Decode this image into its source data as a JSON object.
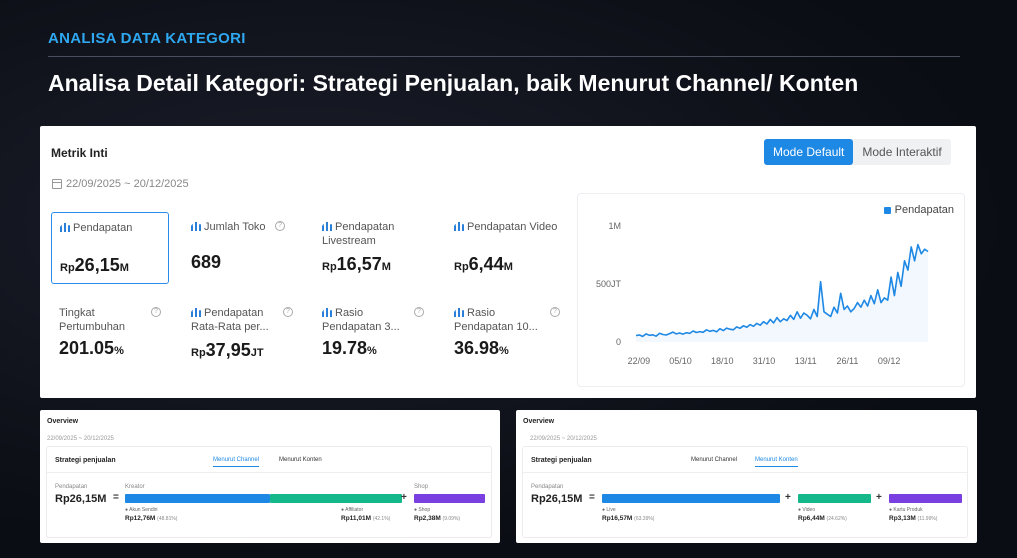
{
  "slide": {
    "tag": "ANALISA DATA KATEGORI",
    "title": "Analisa Detail Kategori: Strategi Penjualan, baik Menurut Channel/ Konten"
  },
  "metrics_panel": {
    "title": "Metrik Inti",
    "date_range": "22/09/2025 ~ 20/12/2025",
    "mode_default": "Mode Default",
    "mode_interaktif": "Mode Interaktif",
    "metrics": [
      {
        "label": "Pendapatan",
        "prefix": "Rp",
        "value": "26,15",
        "unit": "M"
      },
      {
        "label": "Jumlah Toko",
        "prefix": "",
        "value": "689",
        "unit": ""
      },
      {
        "label": "Pendapatan Livestream",
        "prefix": "Rp",
        "value": "16,57",
        "unit": "M"
      },
      {
        "label": "Pendapatan Video",
        "prefix": "Rp",
        "value": "6,44",
        "unit": "M"
      },
      {
        "label": "Tingkat Pertumbuhan",
        "prefix": "",
        "value": "201.05",
        "unit": "%"
      },
      {
        "label": "Pendapatan Rata-Rata per...",
        "prefix": "Rp",
        "value": "37,95",
        "unit": "JT"
      },
      {
        "label": "Rasio Pendapatan 3...",
        "prefix": "",
        "value": "19.78",
        "unit": "%"
      },
      {
        "label": "Rasio Pendapatan 10...",
        "prefix": "",
        "value": "36.98",
        "unit": "%"
      }
    ]
  },
  "chart_data": {
    "type": "line",
    "legend": "Pendapatan",
    "legend_position": "top-right",
    "grid": false,
    "x_ticks": [
      "22/09",
      "05/10",
      "18/10",
      "31/10",
      "13/11",
      "26/11",
      "09/12"
    ],
    "y_ticks": [
      "0",
      "500JT",
      "1M"
    ],
    "ylim": [
      0,
      1000
    ],
    "y_unit": "JT",
    "series": [
      {
        "name": "Pendapatan",
        "color": "#1e88e5",
        "values": [
          55,
          60,
          48,
          70,
          58,
          62,
          50,
          75,
          65,
          60,
          72,
          85,
          70,
          78,
          68,
          80,
          74,
          95,
          82,
          90,
          84,
          105,
          92,
          100,
          88,
          115,
          98,
          120,
          110,
          105,
          130,
          118,
          140,
          128,
          150,
          135,
          160,
          145,
          175,
          155,
          195,
          165,
          210,
          175,
          200,
          185,
          230,
          195,
          260,
          205,
          250,
          230,
          200,
          280,
          220,
          520,
          260,
          240,
          220,
          300,
          250,
          420,
          280,
          310,
          260,
          290,
          340,
          300,
          360,
          310,
          400,
          330,
          450,
          340,
          380,
          360,
          560,
          400,
          600,
          480,
          700,
          620,
          820,
          700,
          840,
          760,
          800,
          780
        ]
      }
    ]
  },
  "overview_left": {
    "title": "Overview",
    "date_range": "22/09/2025 ~ 20/12/2025",
    "strategy": "Strategi penjualan",
    "tab1": "Menurut Channel",
    "tab2": "Menurut Konten",
    "revenue_label": "Pendapatan",
    "revenue_value": "Rp26,15M",
    "kreator": "Kreator",
    "shop": "Shop",
    "seg1_label": "Akun Sendiri",
    "seg1_value": "Rp12,76M",
    "seg1_pct": "(48.81%)",
    "seg2_label": "Affiliator",
    "seg2_value": "Rp11,01M",
    "seg2_pct": "(42.1%)",
    "seg3_label": "Shop",
    "seg3_value": "Rp2,38M",
    "seg3_pct": "(9.09%)",
    "colors": {
      "blue": "#1e88e5",
      "green": "#14b88a",
      "purple": "#7a3fe0"
    }
  },
  "overview_right": {
    "title": "Overview",
    "date_range": "22/09/2025 ~ 20/12/2025",
    "strategy": "Strategi penjualan",
    "tab1": "Menurut Channel",
    "tab2": "Menurut Konten",
    "revenue_label": "Pendapatan",
    "revenue_value": "Rp26,15M",
    "seg1_label": "Live",
    "seg1_value": "Rp16,57M",
    "seg1_pct": "(63.39%)",
    "seg2_label": "Video",
    "seg2_value": "Rp6,44M",
    "seg2_pct": "(24.62%)",
    "seg3_label": "Kartu Produk",
    "seg3_value": "Rp3,13M",
    "seg3_pct": "(11.99%)"
  }
}
